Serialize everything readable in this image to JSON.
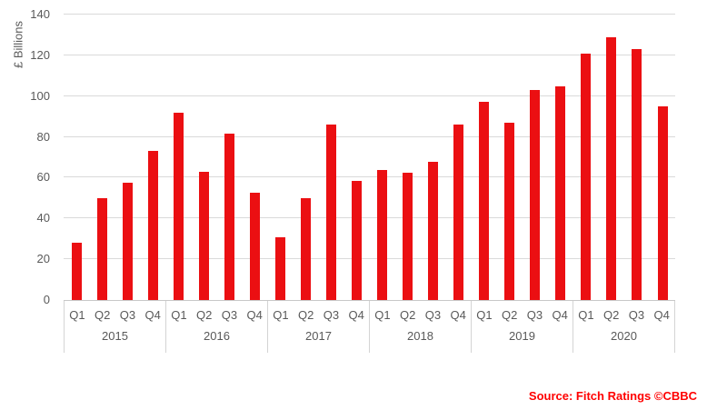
{
  "chart_data": {
    "type": "bar",
    "title": "",
    "xlabel": "",
    "ylabel": "£ Billions",
    "ylim": [
      0,
      140
    ],
    "yticks": [
      0,
      20,
      40,
      60,
      80,
      100,
      120,
      140
    ],
    "grid": true,
    "legend": false,
    "groups": [
      {
        "year": "2015",
        "quarters": [
          "Q1",
          "Q2",
          "Q3",
          "Q4"
        ],
        "values": [
          28,
          50,
          57.5,
          73
        ]
      },
      {
        "year": "2016",
        "quarters": [
          "Q1",
          "Q2",
          "Q3",
          "Q4"
        ],
        "values": [
          92,
          63,
          81.5,
          52.5
        ]
      },
      {
        "year": "2017",
        "quarters": [
          "Q1",
          "Q2",
          "Q3",
          "Q4"
        ],
        "values": [
          31,
          50,
          86,
          58.5
        ]
      },
      {
        "year": "2018",
        "quarters": [
          "Q1",
          "Q2",
          "Q3",
          "Q4"
        ],
        "values": [
          64,
          62.5,
          68,
          86
        ]
      },
      {
        "year": "2019",
        "quarters": [
          "Q1",
          "Q2",
          "Q3",
          "Q4"
        ],
        "values": [
          97,
          87,
          103,
          105
        ]
      },
      {
        "year": "2020",
        "quarters": [
          "Q1",
          "Q2",
          "Q3",
          "Q4"
        ],
        "values": [
          121,
          129,
          123,
          95
        ]
      }
    ],
    "source": "Source: Fitch Ratings ©CBBC"
  },
  "colors": {
    "bar": "#eb0f12",
    "gridline": "#dadada",
    "axis_line": "#c8c8c8",
    "axis_text": "#595959",
    "source_text": "#ff0000"
  }
}
